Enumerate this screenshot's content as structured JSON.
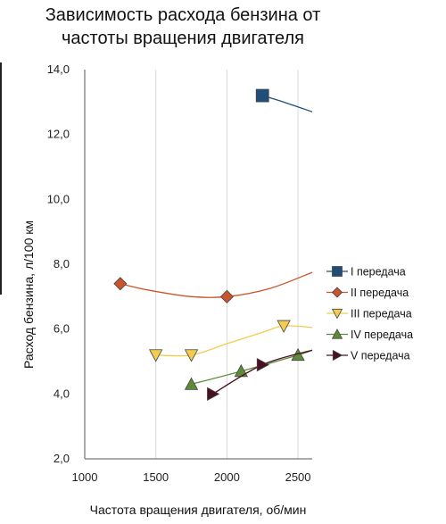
{
  "chart_data": {
    "type": "line",
    "title_lines": [
      "Зависимость расхода бензина от",
      "частоты вращения двигателя"
    ],
    "xlabel": "Частота вращения двигателя, об/мин",
    "ylabel": "Расход бензина, л/100 км",
    "xlim": [
      1000,
      2600
    ],
    "ylim": [
      2.0,
      14.0
    ],
    "x_ticks": [
      1000,
      1500,
      2000,
      2500
    ],
    "x_tick_labels": [
      "1000",
      "1500",
      "2000",
      "2500"
    ],
    "y_ticks": [
      2,
      4,
      6,
      8,
      10,
      12,
      14
    ],
    "y_tick_labels": [
      "2,0",
      "4,0",
      "6,0",
      "8,0",
      "10,0",
      "12,0",
      "14,0"
    ],
    "grid": "vertical",
    "legend_position": "right",
    "series": [
      {
        "name": "I передача",
        "color": "#1f4e79",
        "marker": "square",
        "marker_points": [
          {
            "x": 2250,
            "y": 13.2
          }
        ],
        "curve": [
          {
            "x": 2250,
            "y": 13.2
          },
          {
            "x": 2400,
            "y": 13.0
          },
          {
            "x": 2600,
            "y": 12.7
          }
        ]
      },
      {
        "name": "II передача",
        "color": "#c8552d",
        "marker": "diamond",
        "marker_points": [
          {
            "x": 1250,
            "y": 7.4
          },
          {
            "x": 2000,
            "y": 7.0
          }
        ],
        "curve": [
          {
            "x": 1250,
            "y": 7.4
          },
          {
            "x": 1450,
            "y": 7.2
          },
          {
            "x": 1750,
            "y": 7.0
          },
          {
            "x": 2000,
            "y": 7.0
          },
          {
            "x": 2300,
            "y": 7.25
          },
          {
            "x": 2600,
            "y": 7.75
          }
        ]
      },
      {
        "name": "III передача",
        "color": "#f3cc4f",
        "marker": "triangle-down",
        "marker_points": [
          {
            "x": 1500,
            "y": 5.2
          },
          {
            "x": 1750,
            "y": 5.2
          },
          {
            "x": 2400,
            "y": 6.1
          }
        ],
        "curve": [
          {
            "x": 1500,
            "y": 5.2
          },
          {
            "x": 1750,
            "y": 5.2
          },
          {
            "x": 2000,
            "y": 5.55
          },
          {
            "x": 2250,
            "y": 5.9
          },
          {
            "x": 2400,
            "y": 6.1
          },
          {
            "x": 2600,
            "y": 6.05
          }
        ]
      },
      {
        "name": "IV передача",
        "color": "#5e8a3a",
        "marker": "triangle-up",
        "marker_points": [
          {
            "x": 1750,
            "y": 4.3
          },
          {
            "x": 2100,
            "y": 4.7
          },
          {
            "x": 2500,
            "y": 5.2
          }
        ],
        "curve": [
          {
            "x": 1750,
            "y": 4.3
          },
          {
            "x": 2100,
            "y": 4.7
          },
          {
            "x": 2500,
            "y": 5.2
          },
          {
            "x": 2600,
            "y": 5.35
          }
        ]
      },
      {
        "name": "V передача",
        "color": "#4a1020",
        "marker": "triangle-right",
        "marker_points": [
          {
            "x": 1900,
            "y": 4.0
          },
          {
            "x": 2250,
            "y": 4.9
          }
        ],
        "curve": [
          {
            "x": 1900,
            "y": 4.0
          },
          {
            "x": 2250,
            "y": 4.9
          },
          {
            "x": 2600,
            "y": 5.35
          }
        ]
      }
    ]
  }
}
